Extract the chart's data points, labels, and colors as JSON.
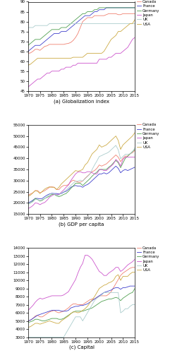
{
  "years": [
    1970,
    1971,
    1972,
    1973,
    1974,
    1975,
    1976,
    1977,
    1978,
    1979,
    1980,
    1981,
    1982,
    1983,
    1984,
    1985,
    1986,
    1987,
    1988,
    1989,
    1990,
    1991,
    1992,
    1993,
    1994,
    1995,
    1996,
    1997,
    1998,
    1999,
    2000,
    2001,
    2002,
    2003,
    2004,
    2005,
    2006,
    2007,
    2008,
    2009,
    2010,
    2011,
    2012,
    2013,
    2014,
    2015
  ],
  "glob": {
    "Canada": [
      64,
      64.2,
      65,
      66,
      66,
      65.5,
      66.5,
      67.5,
      67.8,
      68.5,
      68.5,
      68.5,
      68.5,
      68.5,
      68.5,
      68.5,
      68.8,
      69,
      69.5,
      70.5,
      72,
      74,
      77,
      80,
      81,
      82,
      82,
      82,
      83,
      83,
      83,
      83,
      83,
      83.5,
      84,
      84,
      84,
      84,
      83.5,
      83.5,
      84,
      84,
      84,
      84,
      84,
      84
    ],
    "France": [
      65,
      66,
      67,
      68,
      68,
      68,
      69,
      70,
      71,
      72,
      73,
      74,
      74,
      74,
      75,
      75,
      75,
      76,
      77,
      78,
      79,
      80,
      81,
      82,
      83,
      83,
      83,
      84,
      85,
      85,
      86,
      86,
      86,
      87,
      87,
      87,
      87,
      87,
      87,
      87,
      87,
      87,
      87,
      87,
      87,
      87
    ],
    "Germany": [
      68,
      69,
      70,
      71,
      71,
      71,
      72,
      73,
      74,
      75,
      76,
      76,
      76,
      76,
      77,
      77,
      77,
      78,
      79,
      80,
      81,
      82,
      83,
      84,
      84,
      85,
      85,
      85,
      86,
      86,
      87,
      87,
      87,
      87,
      87,
      87,
      87,
      87,
      87,
      87,
      87,
      87,
      87,
      87,
      87,
      87
    ],
    "Japan": [
      47,
      48,
      49,
      50,
      51,
      51,
      52,
      53,
      54,
      54,
      55,
      55,
      55,
      55,
      56,
      56,
      57,
      57,
      57,
      58,
      58,
      59,
      59,
      59,
      59,
      59,
      59,
      59,
      59,
      59,
      61,
      61,
      61,
      61,
      62,
      62,
      63,
      64,
      64,
      64,
      65,
      66,
      67,
      69,
      71,
      72
    ],
    "UK": [
      77,
      77,
      77,
      78,
      78,
      78,
      78,
      78,
      78,
      79,
      79,
      79,
      79,
      79,
      79,
      79,
      79,
      79,
      79,
      79,
      79,
      79,
      79,
      79,
      79,
      79,
      79,
      79,
      79,
      79,
      79,
      79,
      79,
      79,
      79,
      79,
      79,
      79,
      79,
      79,
      79,
      79,
      79,
      79,
      79,
      79
    ],
    "USA": [
      58,
      58.5,
      59.5,
      60.5,
      61.5,
      61.5,
      61.5,
      61.5,
      61.5,
      61.5,
      61.5,
      61.5,
      61.5,
      61.5,
      61.5,
      61.5,
      61.5,
      61.5,
      61.5,
      62,
      62,
      62,
      62,
      62,
      63,
      64,
      64,
      64,
      64,
      64,
      64,
      64,
      65,
      67,
      69,
      71,
      72,
      73,
      75,
      75,
      76,
      77,
      78,
      79,
      79,
      81
    ]
  },
  "gdp": {
    "Canada": [
      23500,
      24000,
      24500,
      25500,
      25500,
      24500,
      25000,
      25500,
      26200,
      27000,
      27200,
      27000,
      26000,
      26000,
      27200,
      27800,
      27800,
      28200,
      29500,
      30200,
      29800,
      29300,
      29300,
      29800,
      31000,
      32000,
      33000,
      34000,
      34500,
      35500,
      37000,
      36500,
      37000,
      37500,
      38500,
      39500,
      40500,
      41500,
      40500,
      38500,
      40000,
      41000,
      41000,
      42000,
      42500,
      43500
    ],
    "France": [
      20000,
      20500,
      21200,
      22000,
      22000,
      21800,
      22000,
      22800,
      23500,
      24000,
      24300,
      24200,
      24200,
      24000,
      24200,
      24800,
      25200,
      26000,
      27000,
      27500,
      27800,
      27500,
      27500,
      27000,
      27800,
      28200,
      29000,
      30000,
      31000,
      32000,
      33000,
      33000,
      33500,
      33000,
      33500,
      34500,
      35500,
      36500,
      35500,
      33500,
      34500,
      35000,
      34500,
      35000,
      35500,
      36000
    ],
    "Germany": [
      19500,
      20000,
      20800,
      22000,
      21500,
      20800,
      21200,
      22000,
      22500,
      23000,
      23800,
      23800,
      23200,
      22800,
      23200,
      23800,
      24200,
      25200,
      26500,
      27500,
      28800,
      28800,
      28800,
      27800,
      28800,
      29800,
      30800,
      32000,
      33000,
      33800,
      35000,
      35000,
      35000,
      35000,
      36000,
      36800,
      38000,
      39000,
      38000,
      35800,
      38000,
      40000,
      41000,
      42000,
      43000,
      44000
    ],
    "Japan": [
      17500,
      18000,
      18800,
      20000,
      19800,
      19200,
      19800,
      20200,
      21200,
      22500,
      23200,
      23800,
      23800,
      23800,
      24800,
      25800,
      27000,
      28000,
      30000,
      31500,
      33000,
      33800,
      34000,
      33500,
      33500,
      34000,
      34000,
      33500,
      33000,
      33000,
      34800,
      35000,
      34500,
      34500,
      35500,
      36500,
      37500,
      39500,
      38500,
      36500,
      39500,
      40500,
      40500,
      40500,
      40500,
      40500
    ],
    "UK": [
      19500,
      20000,
      20500,
      21500,
      21500,
      21000,
      21500,
      22000,
      22800,
      23800,
      24200,
      24000,
      23500,
      23500,
      24500,
      25000,
      25800,
      26800,
      27800,
      28800,
      29800,
      29800,
      30200,
      29800,
      30800,
      31800,
      32800,
      35000,
      37000,
      38800,
      40800,
      41200,
      41800,
      42200,
      42800,
      43800,
      44800,
      45800,
      43800,
      39800,
      40800,
      41800,
      41800,
      42000,
      42800,
      44800
    ],
    "USA": [
      23000,
      23500,
      24500,
      25500,
      25200,
      24200,
      25200,
      26200,
      26800,
      27200,
      27000,
      27000,
      26000,
      27000,
      28500,
      29500,
      30500,
      31500,
      32500,
      33500,
      34500,
      34200,
      34500,
      35000,
      37000,
      38000,
      40000,
      42000,
      43000,
      44000,
      46000,
      45000,
      45500,
      46000,
      47000,
      48000,
      49000,
      50000,
      48000,
      44000,
      46000,
      47000,
      48000,
      49000,
      50000,
      51500
    ]
  },
  "cap": {
    "Canada": [
      5000,
      5100,
      5300,
      5600,
      5700,
      5500,
      5500,
      5700,
      5900,
      6100,
      6200,
      6300,
      6100,
      6000,
      6100,
      6200,
      6400,
      6600,
      6900,
      7100,
      7100,
      7000,
      7000,
      7000,
      7200,
      7400,
      7600,
      7700,
      7700,
      7900,
      8100,
      8100,
      8100,
      8100,
      8300,
      8600,
      9100,
      9600,
      10100,
      10600,
      10900,
      11100,
      11300,
      11500,
      11600,
      11600
    ],
    "France": [
      5000,
      5100,
      5300,
      5500,
      5700,
      5800,
      5900,
      6000,
      6100,
      6200,
      6300,
      6300,
      6300,
      6300,
      6200,
      6200,
      6200,
      6300,
      6600,
      6700,
      6800,
      6800,
      6900,
      6900,
      7000,
      7100,
      7300,
      7500,
      7700,
      7900,
      8100,
      8300,
      8500,
      8600,
      8700,
      8800,
      9000,
      9100,
      9100,
      8900,
      9100,
      9100,
      9200,
      9300,
      9300,
      9300
    ],
    "Germany": [
      4800,
      4900,
      5000,
      5200,
      5200,
      5100,
      5000,
      5000,
      5100,
      5200,
      5300,
      5300,
      5300,
      5200,
      5200,
      5300,
      5500,
      5700,
      5900,
      6100,
      6200,
      6200,
      6200,
      6200,
      6300,
      6400,
      6500,
      6600,
      6800,
      7000,
      7200,
      7400,
      7500,
      7600,
      7700,
      7700,
      7800,
      7900,
      7800,
      7500,
      7800,
      8000,
      8200,
      8400,
      8500,
      9000
    ],
    "Japan": [
      6300,
      6600,
      6900,
      7300,
      7600,
      7800,
      7700,
      7800,
      7900,
      8000,
      8100,
      8100,
      8100,
      8100,
      8100,
      8200,
      8400,
      8600,
      9100,
      9600,
      10100,
      10900,
      11600,
      12100,
      13100,
      13100,
      12900,
      12600,
      12100,
      11600,
      11100,
      10900,
      10600,
      10600,
      10900,
      11100,
      11300,
      11600,
      11600,
      11100,
      11300,
      11600,
      11900,
      12100,
      12300,
      12600
    ],
    "UK": [
      3000,
      3000,
      3000,
      3000,
      3000,
      3000,
      3000,
      3000,
      3000,
      3000,
      3000,
      3000,
      3000,
      3000,
      3000,
      3000,
      3500,
      4000,
      4500,
      5000,
      5500,
      5500,
      5500,
      5000,
      5500,
      6000,
      6500,
      7000,
      7500,
      7800,
      8000,
      8200,
      8500,
      8500,
      8500,
      8500,
      8500,
      8500,
      8500,
      6000,
      6200,
      6500,
      6500,
      6800,
      7000,
      7000
    ],
    "USA": [
      4200,
      4300,
      4500,
      4700,
      4700,
      4600,
      4700,
      4800,
      4900,
      5000,
      4900,
      4800,
      4700,
      4700,
      5000,
      5200,
      5400,
      5600,
      5900,
      6100,
      6100,
      6000,
      6100,
      6300,
      6500,
      6800,
      7200,
      7600,
      8000,
      8500,
      9000,
      9200,
      9400,
      9500,
      9700,
      9800,
      10000,
      10500,
      10700,
      10000,
      10500,
      10500,
      10500,
      10800,
      11000,
      11000
    ]
  },
  "colors": {
    "Canada": "#f08070",
    "France": "#4040cc",
    "Germany": "#50a050",
    "Japan": "#cc55cc",
    "UK": "#aacccc",
    "USA": "#ccaa44"
  },
  "countries": [
    "Canada",
    "France",
    "Germany",
    "Japan",
    "UK",
    "USA"
  ],
  "xlim": [
    1970,
    2015
  ],
  "glob_ylim": [
    45,
    90
  ],
  "gdp_ylim": [
    15000,
    55000
  ],
  "cap_ylim": [
    3000,
    14000
  ],
  "glob_yticks": [
    45,
    50,
    55,
    60,
    65,
    70,
    75,
    80,
    85,
    90
  ],
  "gdp_yticks": [
    15000,
    20000,
    25000,
    30000,
    35000,
    40000,
    45000,
    50000,
    55000
  ],
  "cap_yticks": [
    3000,
    4000,
    5000,
    6000,
    7000,
    8000,
    9000,
    10000,
    11000,
    12000,
    13000,
    14000
  ],
  "xticks": [
    1970,
    1975,
    1980,
    1985,
    1990,
    1995,
    2000,
    2005,
    2010,
    2015
  ],
  "xlabel_a": "(a) Globalization index",
  "xlabel_b": "(b) GDP per capita",
  "xlabel_c": "(c) Capital"
}
